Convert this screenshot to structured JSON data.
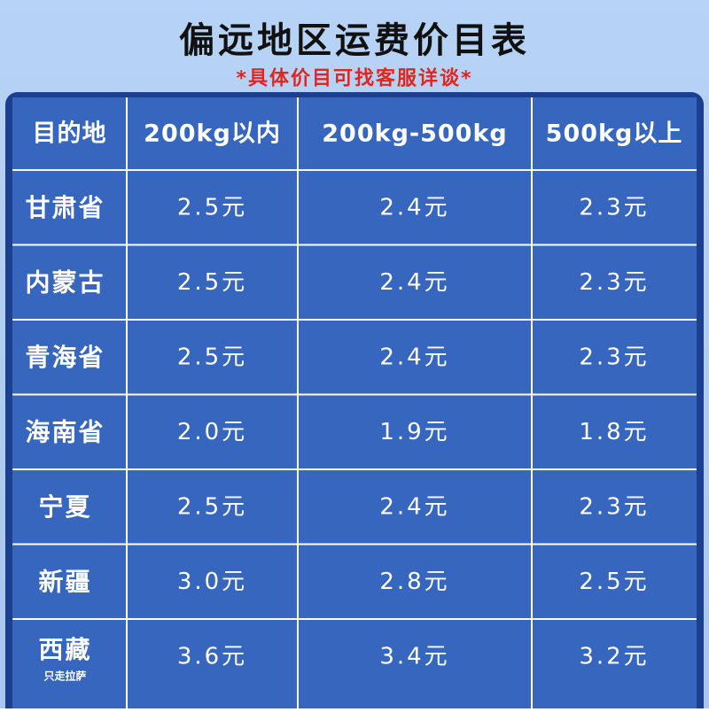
{
  "header": {
    "title": "偏远地区运费价目表",
    "subtitle": "*具体价目可找客服详谈*"
  },
  "table": {
    "columns": [
      "目的地",
      "200kg以内",
      "200kg-500kg",
      "500kg以上"
    ],
    "rows": [
      {
        "region": "甘肃省",
        "prices": [
          "2.5元",
          "2.4元",
          "2.3元"
        ]
      },
      {
        "region": "内蒙古",
        "prices": [
          "2.5元",
          "2.4元",
          "2.3元"
        ]
      },
      {
        "region": "青海省",
        "prices": [
          "2.5元",
          "2.4元",
          "2.3元"
        ]
      },
      {
        "region": "海南省",
        "prices": [
          "2.0元",
          "1.9元",
          "1.8元"
        ]
      },
      {
        "region": "宁夏",
        "prices": [
          "2.5元",
          "2.4元",
          "2.3元"
        ]
      },
      {
        "region": "新疆",
        "prices": [
          "3.0元",
          "2.8元",
          "2.5元"
        ]
      },
      {
        "region": "西藏",
        "note": "只走拉萨",
        "prices": [
          "3.6元",
          "3.4元",
          "3.2元"
        ]
      }
    ]
  }
}
